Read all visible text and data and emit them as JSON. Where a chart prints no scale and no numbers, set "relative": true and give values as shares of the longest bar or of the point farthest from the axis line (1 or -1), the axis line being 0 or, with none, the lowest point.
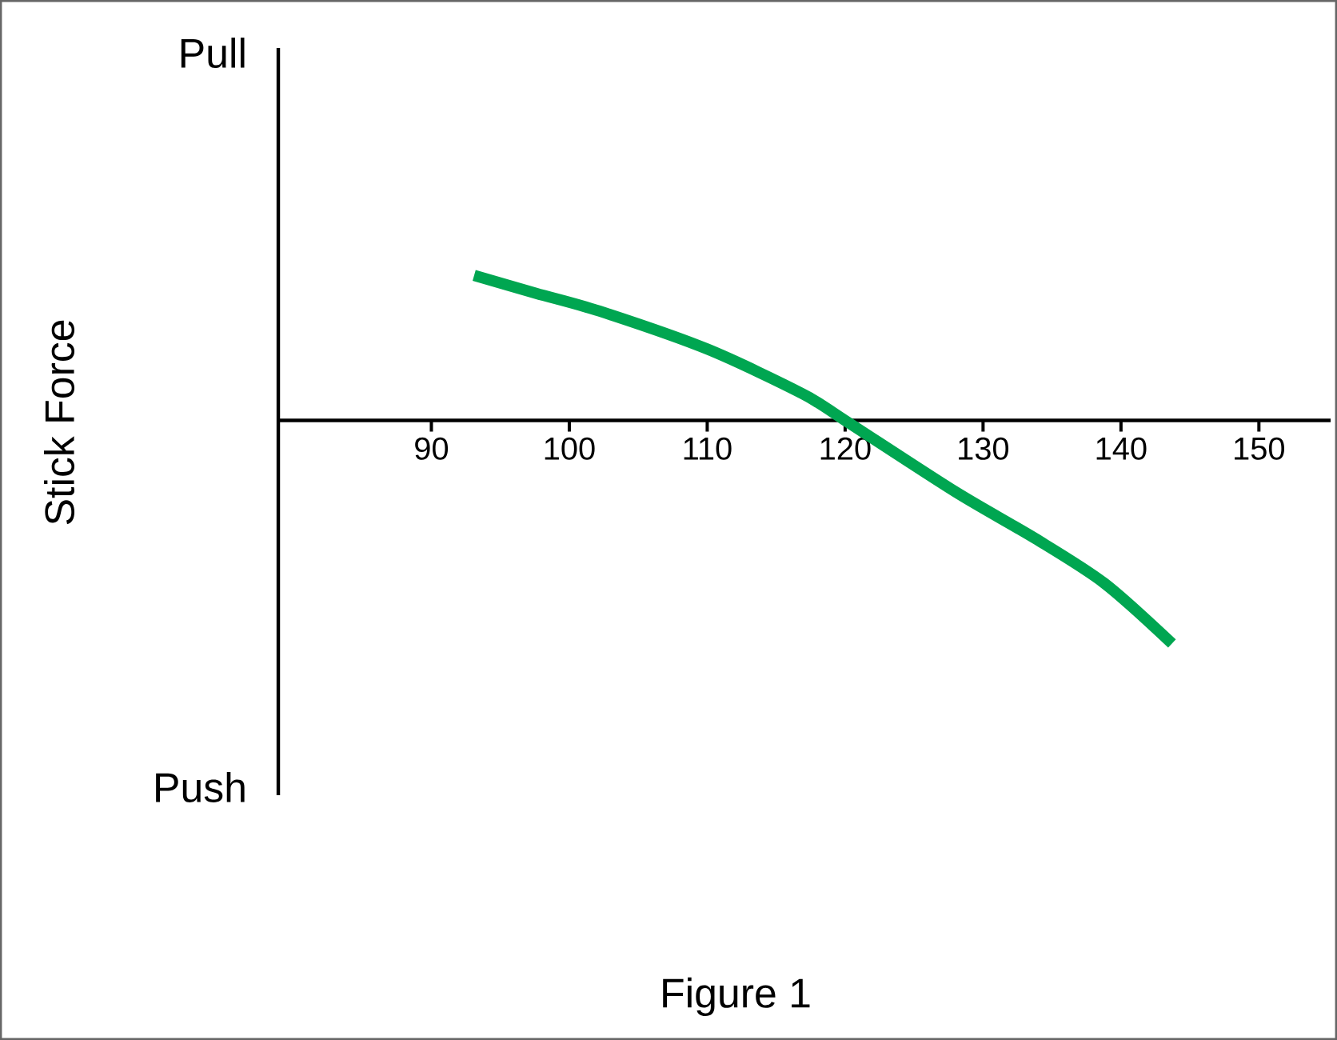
{
  "chart_data": {
    "type": "line",
    "ylabel": "Stick Force",
    "annotations": [
      "Pull",
      "Push",
      "Figure 1"
    ],
    "relative": true,
    "x": [
      93.1,
      97.6,
      102.2,
      110.0,
      116.9,
      120.0,
      128.0,
      133.8,
      138.8,
      143.7
    ],
    "series": [
      {
        "color": "#00a651",
        "values": [
          0.65,
          0.57,
          0.49,
          0.32,
          0.12,
          0,
          -0.32,
          -0.53,
          -0.73,
          -1
        ]
      }
    ],
    "xlim": [
      78.9,
      155.2
    ],
    "xticks": [
      90,
      100,
      110,
      120,
      130,
      140,
      150
    ],
    "grid": false,
    "marker": "none",
    "line_style": "solid"
  }
}
